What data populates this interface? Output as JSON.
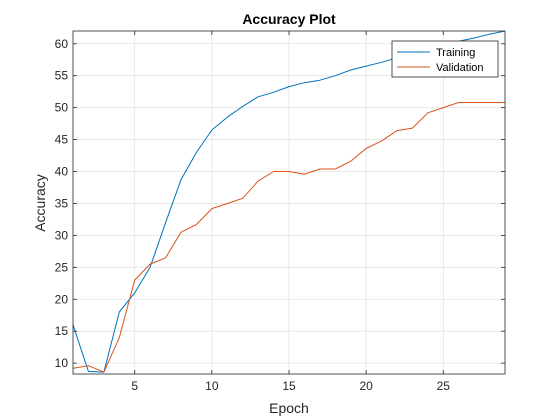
{
  "chart_data": {
    "type": "line",
    "title": "Accuracy Plot",
    "xlabel": "Epoch",
    "ylabel": "Accuracy",
    "xlim": [
      1,
      29
    ],
    "ylim": [
      8.3,
      62
    ],
    "xticks": [
      5,
      10,
      15,
      20,
      25
    ],
    "yticks": [
      10,
      15,
      20,
      25,
      30,
      35,
      40,
      45,
      50,
      55,
      60
    ],
    "grid": true,
    "legend_position": "top-right",
    "x": [
      1,
      2,
      3,
      4,
      5,
      6,
      7,
      8,
      9,
      10,
      11,
      12,
      13,
      14,
      15,
      16,
      17,
      18,
      19,
      20,
      21,
      22,
      23,
      24,
      25,
      26,
      27,
      28,
      29
    ],
    "series": [
      {
        "name": "Training",
        "color": "#0072BD",
        "values": [
          16,
          8.7,
          8.6,
          18,
          21,
          25,
          32,
          38.7,
          43,
          46.5,
          48.5,
          50.2,
          51.7,
          52.4,
          53.3,
          53.9,
          54.3,
          55.0,
          55.9,
          56.5,
          57.1,
          57.8,
          58.5,
          59.2,
          59.8,
          60.4,
          60.9,
          61.5,
          62.0
        ]
      },
      {
        "name": "Validation",
        "color": "#D95319",
        "values": [
          9.2,
          9.6,
          8.6,
          14,
          23,
          25.5,
          26.5,
          30.5,
          31.7,
          34.2,
          35.0,
          35.8,
          38.5,
          40.0,
          40.0,
          39.6,
          40.4,
          40.4,
          41.6,
          43.6,
          44.8,
          46.4,
          46.8,
          49.2,
          50.0,
          50.8,
          50.8,
          50.8,
          50.8
        ]
      }
    ]
  }
}
